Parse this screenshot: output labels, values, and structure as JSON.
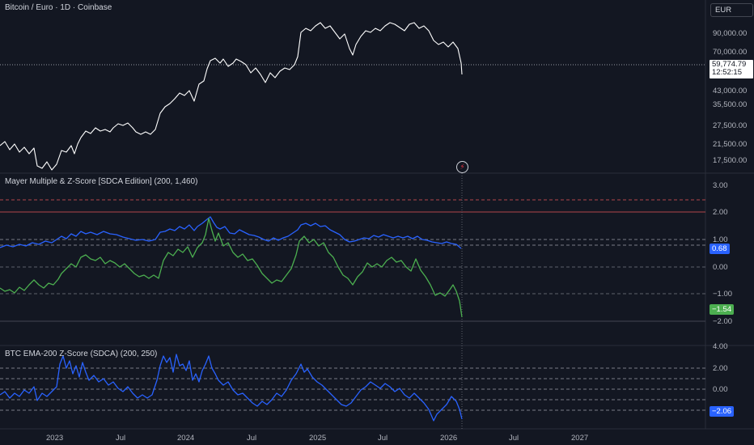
{
  "header": {
    "symbol_title": "Bitcoin / Euro · 1D · Coinbase",
    "currency": "EUR"
  },
  "price_pane": {
    "last_price": "59,774.79",
    "countdown": "12:52:15",
    "ticks": [
      "90,000.00",
      "70,000.00",
      "43,000.00",
      "35,500.00",
      "27,500.00",
      "21,500.00",
      "17,500.00"
    ],
    "alert_icon": "lightning-icon"
  },
  "indicator1": {
    "title": "Mayer Multiple & Z-Score [SDCA Edition] (200, 1,460)",
    "ticks": [
      "3.00",
      "2.00",
      "1.00",
      "0.00",
      "−1.00",
      "−2.00"
    ],
    "mayer_value": "0.68",
    "zscore_value": "−1.54",
    "mayer_color": "#2962ff",
    "zscore_color": "#4caf50"
  },
  "indicator2": {
    "title": "BTC EMA-200 Z-Score (SDCA) (200, 250)",
    "ticks": [
      "4.00",
      "2.00",
      "0.00"
    ],
    "value": "−2.06",
    "color": "#2962ff"
  },
  "time_axis": {
    "labels": [
      "2023",
      "Jul",
      "2024",
      "Jul",
      "2025",
      "Jul",
      "2026",
      "Jul",
      "2027"
    ]
  },
  "colors": {
    "background": "#131722",
    "grid": "#2a2e39",
    "price_line": "#ffffff",
    "red_dash": "#b0454a"
  }
}
